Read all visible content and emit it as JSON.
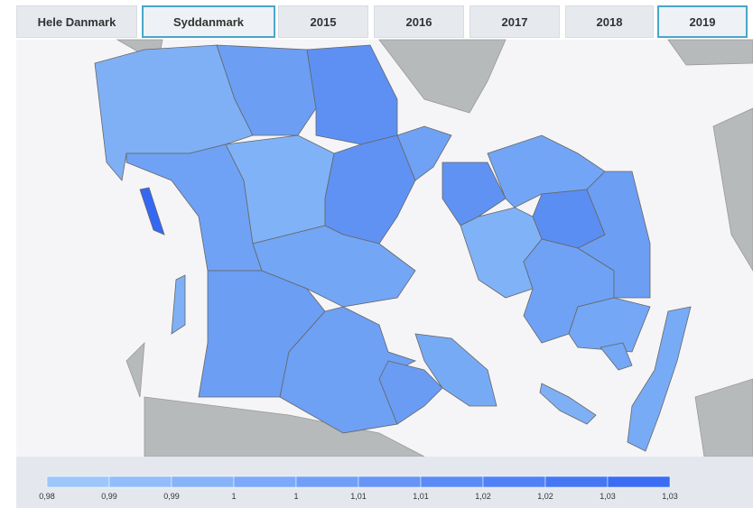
{
  "tabs": [
    {
      "label": "Hele Danmark",
      "selected": false
    },
    {
      "label": "Syddanmark",
      "selected": true
    },
    {
      "label": "2015",
      "selected": false
    },
    {
      "label": "2016",
      "selected": false
    },
    {
      "label": "2017",
      "selected": false
    },
    {
      "label": "2018",
      "selected": false
    },
    {
      "label": "2019",
      "selected": true
    }
  ],
  "legend": {
    "labels": [
      "0,98",
      "0,99",
      "0,99",
      "1",
      "1",
      "1,01",
      "1,01",
      "1,02",
      "1,02",
      "1,03",
      "1,03"
    ],
    "color_low": "#a2ccfb",
    "color_high": "#3468f4"
  }
}
